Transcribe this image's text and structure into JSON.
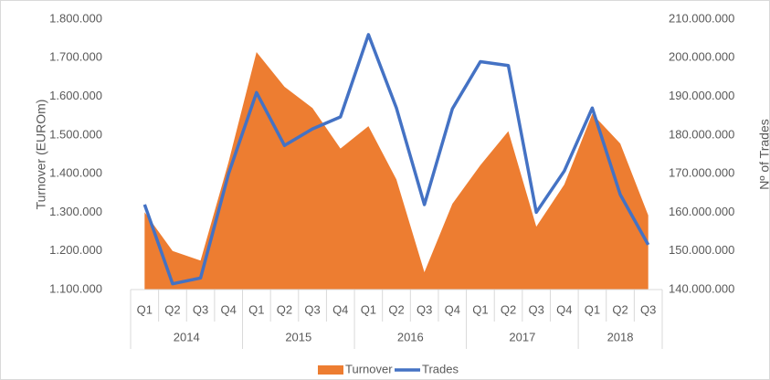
{
  "chart_data": {
    "type": "area-line",
    "y_label": "Turnover (EUROm)",
    "y2_label": "Nº of Trades",
    "groups": [
      {
        "name": "2014",
        "categories": [
          "Q1",
          "Q2",
          "Q3",
          "Q4"
        ]
      },
      {
        "name": "2015",
        "categories": [
          "Q1",
          "Q2",
          "Q3",
          "Q4"
        ]
      },
      {
        "name": "2016",
        "categories": [
          "Q1",
          "Q2",
          "Q3",
          "Q4"
        ]
      },
      {
        "name": "2017",
        "categories": [
          "Q1",
          "Q2",
          "Q3",
          "Q4"
        ]
      },
      {
        "name": "2018",
        "categories": [
          "Q1",
          "Q2",
          "Q3"
        ]
      }
    ],
    "series": [
      {
        "name": "Turnover",
        "type": "area",
        "color": "#ed7d31",
        "axis": "y",
        "values": [
          1300000,
          1200000,
          1175000,
          1430000,
          1715000,
          1625000,
          1570000,
          1465000,
          1523000,
          1385000,
          1145000,
          1322000,
          1422000,
          1510000,
          1263000,
          1372000,
          1555000,
          1478000,
          1292000
        ]
      },
      {
        "name": "Trades",
        "type": "line",
        "color": "#4472c4",
        "axis": "y2",
        "values": [
          162000000,
          141500000,
          143000000,
          170000000,
          191000000,
          177300000,
          181600000,
          184700000,
          206000000,
          187000000,
          162000000,
          186800000,
          199000000,
          198000000,
          160000000,
          170700000,
          187000000,
          164600000,
          151600000
        ]
      }
    ],
    "ylim": [
      1100000,
      1800000
    ],
    "yticks": [
      {
        "value": 1100000,
        "label": "1.100.000"
      },
      {
        "value": 1200000,
        "label": "1.200.000"
      },
      {
        "value": 1300000,
        "label": "1.300.000"
      },
      {
        "value": 1400000,
        "label": "1.400.000"
      },
      {
        "value": 1500000,
        "label": "1.500.000"
      },
      {
        "value": 1600000,
        "label": "1.600.000"
      },
      {
        "value": 1700000,
        "label": "1.700.000"
      },
      {
        "value": 1800000,
        "label": "1.800.000"
      }
    ],
    "y2lim": [
      140000000,
      210000000
    ],
    "y2ticks": [
      {
        "value": 140000000,
        "label": "140.000.000"
      },
      {
        "value": 150000000,
        "label": "150.000.000"
      },
      {
        "value": 160000000,
        "label": "160.000.000"
      },
      {
        "value": 170000000,
        "label": "170.000.000"
      },
      {
        "value": 180000000,
        "label": "180.000.000"
      },
      {
        "value": 190000000,
        "label": "190.000.000"
      },
      {
        "value": 200000000,
        "label": "200.000.000"
      },
      {
        "value": 210000000,
        "label": "210.000.000"
      }
    ],
    "grid": false,
    "legend": "bottom"
  }
}
